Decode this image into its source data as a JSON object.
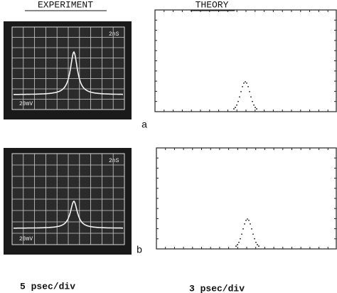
{
  "headers": {
    "experiment": "EXPERIMENT",
    "theory": "THEORY"
  },
  "panels": [
    {
      "label": "a",
      "scope_time": "2nS",
      "scope_volt": "20mV"
    },
    {
      "label": "b",
      "scope_time": "2nS",
      "scope_volt": "20mV"
    }
  ],
  "footer": {
    "experiment_scale": "5 psec/div",
    "theory_scale": "3 psec/div"
  }
}
